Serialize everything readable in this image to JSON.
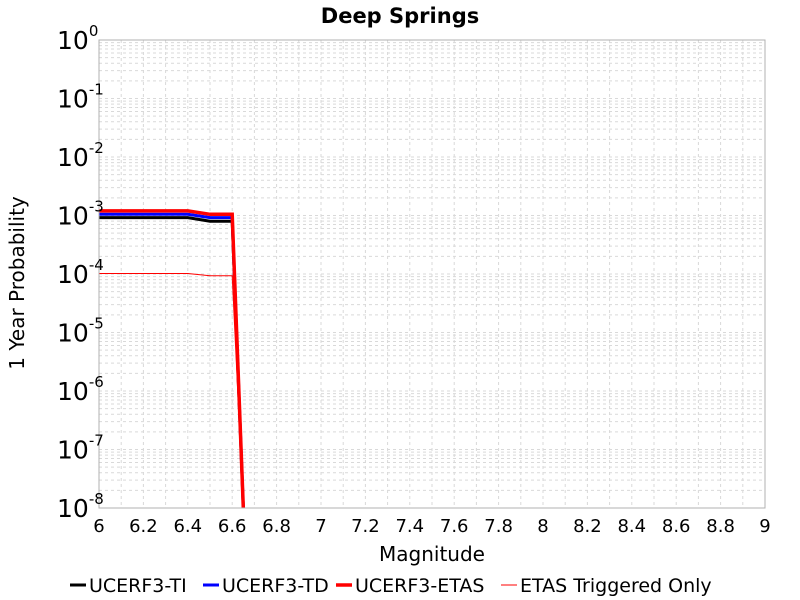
{
  "chart_data": {
    "type": "line",
    "title": "Deep Springs",
    "xlabel": "Magnitude",
    "ylabel": "1 Year Probability",
    "xlim": [
      6,
      9
    ],
    "ylim": [
      1e-08,
      1
    ],
    "yscale": "log",
    "grid": true,
    "legend_position": "bottom",
    "x_ticks": [
      "6",
      "6.2",
      "6.4",
      "6.6",
      "6.8",
      "7",
      "7.2",
      "7.4",
      "7.6",
      "7.8",
      "8",
      "8.2",
      "8.4",
      "8.6",
      "8.8",
      "9"
    ],
    "y_ticks": [
      {
        "base": "10",
        "exp": "0"
      },
      {
        "base": "10",
        "exp": "-1"
      },
      {
        "base": "10",
        "exp": "-2"
      },
      {
        "base": "10",
        "exp": "-3"
      },
      {
        "base": "10",
        "exp": "-4"
      },
      {
        "base": "10",
        "exp": "-5"
      },
      {
        "base": "10",
        "exp": "-6"
      },
      {
        "base": "10",
        "exp": "-7"
      },
      {
        "base": "10",
        "exp": "-8"
      }
    ],
    "series": [
      {
        "name": "UCERF3-TI",
        "color": "#000000",
        "width": 3,
        "x": [
          6.0,
          6.4,
          6.5,
          6.6,
          6.65
        ],
        "y": [
          0.00092,
          0.00092,
          0.0008,
          0.0008,
          1e-08
        ]
      },
      {
        "name": "UCERF3-TD",
        "color": "#0000ff",
        "width": 3,
        "x": [
          6.0,
          6.4,
          6.5,
          6.6,
          6.65
        ],
        "y": [
          0.00105,
          0.00105,
          0.00092,
          0.00092,
          1e-08
        ]
      },
      {
        "name": "UCERF3-ETAS",
        "color": "#ff0000",
        "width": 3.5,
        "x": [
          6.0,
          6.4,
          6.5,
          6.6,
          6.65
        ],
        "y": [
          0.0012,
          0.0012,
          0.00105,
          0.00105,
          1e-08
        ]
      },
      {
        "name": "ETAS Triggered Only",
        "color": "#ff0000",
        "width": 1,
        "x": [
          6.0,
          6.4,
          6.5,
          6.6,
          6.65
        ],
        "y": [
          0.000102,
          0.000102,
          9.3e-05,
          9.3e-05,
          1e-08
        ]
      }
    ]
  }
}
